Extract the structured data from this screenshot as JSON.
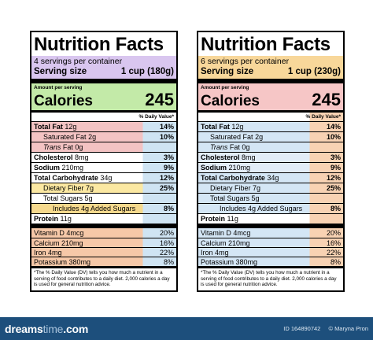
{
  "colors": {
    "left_serving_bg": "#d9c6ef",
    "left_calories_bg": "#c3eaa8",
    "left_fat_bg": "#f3c3c3",
    "left_chol_bg": "#ffffff",
    "left_carb_bg": "#fbe8a2",
    "left_fiber_bg": "#f6d98d",
    "left_protein_bg": "#ffffff",
    "left_vitamins_bg": "#f6c8a8",
    "left_pct_col_bg": "#cfe4f3",
    "right_serving_bg": "#f8d79a",
    "right_calories_bg": "#f6c6c6",
    "right_fat_bg": "#d4e6f5",
    "right_chol_bg": "#e2ecf7",
    "right_carb_bg": "#d4e6f5",
    "right_vitamins_bg": "#d4e6f5",
    "right_pct_col_bg": "#f8d2b3",
    "footer_bg": "#1d4f7c"
  },
  "labels": [
    {
      "title": "Nutrition Facts",
      "servings": "4 servings per container",
      "serving_size_label": "Serving size",
      "serving_size_value": "1 cup (180g)",
      "amount": "Amount per serving",
      "calories_label": "Calories",
      "calories_value": "245",
      "dv_header": "% Daily Value*",
      "nutrients": [
        {
          "name": "Total Fat",
          "amount": "12g",
          "pct": "14%"
        },
        {
          "name": "Saturated Fat",
          "amount": "2g",
          "pct": "10%"
        },
        {
          "name": "Trans",
          "name_suffix": " Fat 0g"
        },
        {
          "name": "Cholesterol",
          "amount": "8mg",
          "pct": "3%"
        },
        {
          "name": "Sodium",
          "amount": "210mg",
          "pct": "9%"
        },
        {
          "name": "Total Carbohydrate",
          "amount": "34g",
          "pct": "12%"
        },
        {
          "name": "Dietary Fiber",
          "amount": "7g",
          "pct": "25%"
        },
        {
          "name": "Total Sugars",
          "amount": "5g"
        },
        {
          "name": "Includes 4g Added Sugars",
          "pct": "8%"
        },
        {
          "name": "Protein",
          "amount": "11g"
        }
      ],
      "vitamins": [
        {
          "name": "Vitamin D",
          "amount": "4mcg",
          "pct": "20%"
        },
        {
          "name": "Calcium",
          "amount": "210mg",
          "pct": "16%"
        },
        {
          "name": "Iron",
          "amount": "4mg",
          "pct": "22%"
        },
        {
          "name": "Potassium",
          "amount": "380mg",
          "pct": "8%"
        }
      ],
      "footnote": "*The % Daily Value (DV) tells you how much a nutrient in a serving of food contributes to a daily diet. 2,000 calories a day is used for general nutrition advice."
    },
    {
      "title": "Nutrition Facts",
      "servings": "6 servings per container",
      "serving_size_label": "Serving size",
      "serving_size_value": "1 cup (230g)",
      "amount": "Amount per serving",
      "calories_label": "Calories",
      "calories_value": "245",
      "dv_header": "% Daily Value*",
      "nutrients": [
        {
          "name": "Total Fat",
          "amount": "12g",
          "pct": "14%"
        },
        {
          "name": "Saturated Fat",
          "amount": "2g",
          "pct": "10%"
        },
        {
          "name": "Trans",
          "name_suffix": " Fat 0g"
        },
        {
          "name": "Cholesterol",
          "amount": "8mg",
          "pct": "3%"
        },
        {
          "name": "Sodium",
          "amount": "210mg",
          "pct": "9%"
        },
        {
          "name": "Total Carbohydrate",
          "amount": "34g",
          "pct": "12%"
        },
        {
          "name": "Dietary Fiber",
          "amount": "7g",
          "pct": "25%"
        },
        {
          "name": "Total Sugars",
          "amount": "5g"
        },
        {
          "name": "Includes 4g Added Sugars",
          "pct": "8%"
        },
        {
          "name": "Protein",
          "amount": "11g"
        }
      ],
      "vitamins": [
        {
          "name": "Vitamin D",
          "amount": "4mcg",
          "pct": "20%"
        },
        {
          "name": "Calcium",
          "amount": "210mg",
          "pct": "16%"
        },
        {
          "name": "Iron",
          "amount": "4mg",
          "pct": "22%"
        },
        {
          "name": "Potassium",
          "amount": "380mg",
          "pct": "8%"
        }
      ],
      "footnote": "*The % Daily Value (DV) tells you how much a nutrient in a serving of food contributes to a daily diet. 2,000 calories a day is used for general nutrition advice."
    }
  ],
  "footer": {
    "brand_main": "dreams",
    "brand_dim": "time",
    "brand_tail": ".com",
    "id_text": "ID 164890742",
    "copyright": "© Maryna Pron"
  }
}
